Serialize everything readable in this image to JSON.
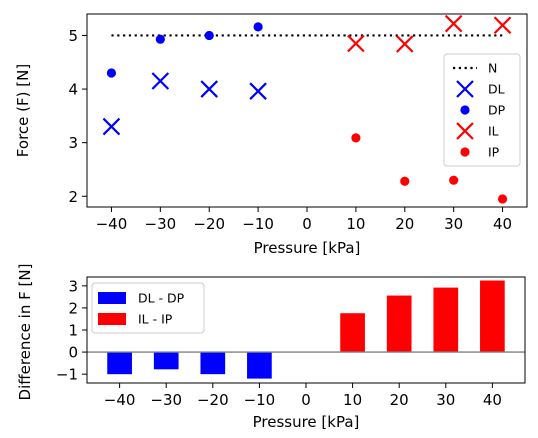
{
  "chart_data": [
    {
      "type": "scatter",
      "xlabel": "Pressure [kPa]",
      "ylabel": "Force (F) [N]",
      "xlim": [
        -45,
        45
      ],
      "ylim": [
        1.8,
        5.4
      ],
      "xticks": [
        -40,
        -30,
        -20,
        -10,
        0,
        10,
        20,
        30,
        40
      ],
      "yticks": [
        2,
        3,
        4,
        5
      ],
      "legend_position": "right",
      "reference_line": {
        "name": "N",
        "y": 5,
        "x_range": [
          -40,
          40
        ],
        "style": "dotted",
        "color": "#000000"
      },
      "series": [
        {
          "name": "DL",
          "marker": "x",
          "color": "#0000ff",
          "x": [
            -40,
            -30,
            -20,
            -10
          ],
          "y": [
            3.3,
            4.15,
            4.0,
            3.96
          ]
        },
        {
          "name": "DP",
          "marker": "dot",
          "color": "#0000ff",
          "x": [
            -40,
            -30,
            -20,
            -10
          ],
          "y": [
            4.3,
            4.93,
            5.0,
            5.16
          ]
        },
        {
          "name": "IL",
          "marker": "x",
          "color": "#ff0000",
          "x": [
            10,
            20,
            30,
            40
          ],
          "y": [
            4.85,
            4.84,
            5.22,
            5.19
          ]
        },
        {
          "name": "IP",
          "marker": "dot",
          "color": "#ff0000",
          "x": [
            10,
            20,
            30,
            40
          ],
          "y": [
            3.09,
            2.28,
            2.3,
            1.95
          ]
        }
      ]
    },
    {
      "type": "bar",
      "xlabel": "Pressure [kPa]",
      "ylabel": "Difference in F [N]",
      "xlim": [
        -47,
        47
      ],
      "ylim": [
        -1.4,
        3.4
      ],
      "xticks": [
        -40,
        -30,
        -20,
        -10,
        0,
        10,
        20,
        30,
        40
      ],
      "yticks": [
        -1,
        0,
        1,
        2,
        3
      ],
      "grid": false,
      "legend_position": "top-left",
      "zero_line_color": "#808080",
      "series": [
        {
          "name": "DL - DP",
          "color": "#0000ff",
          "x": [
            -40,
            -30,
            -20,
            -10
          ],
          "values": [
            -1.0,
            -0.78,
            -1.0,
            -1.2
          ]
        },
        {
          "name": "IL - IP",
          "color": "#ff0000",
          "x": [
            10,
            20,
            30,
            40
          ],
          "values": [
            1.76,
            2.56,
            2.92,
            3.24
          ]
        }
      ]
    }
  ]
}
